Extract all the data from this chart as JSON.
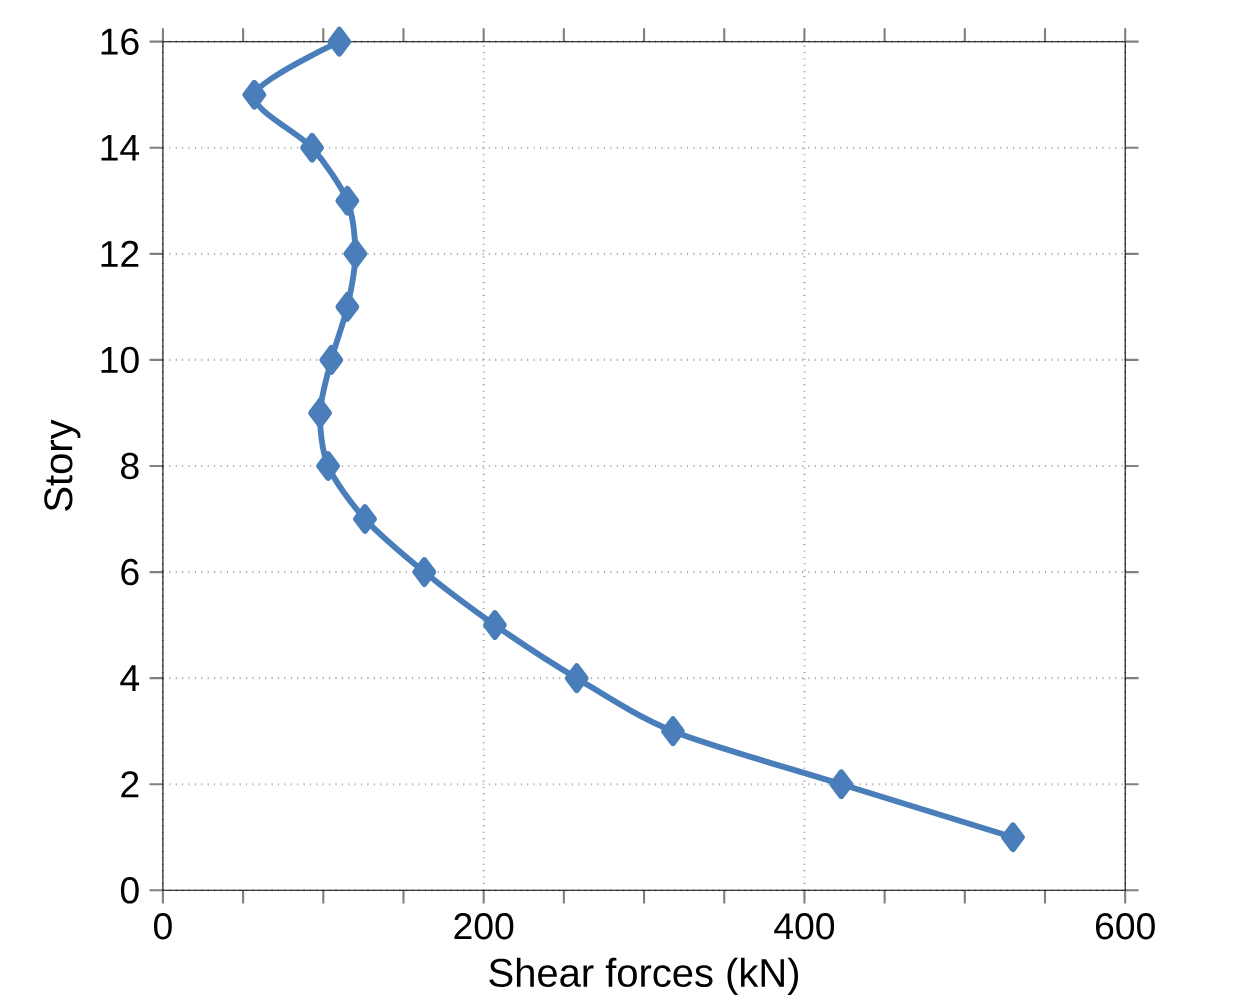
{
  "chart_data": {
    "type": "line",
    "xlabel": "Shear forces (kN)",
    "ylabel": "Story",
    "x": [
      530,
      423,
      318,
      258,
      207,
      163,
      126,
      103,
      98,
      105,
      115,
      120,
      115,
      93,
      57,
      110
    ],
    "values": [
      1,
      2,
      3,
      4,
      5,
      6,
      7,
      8,
      9,
      10,
      11,
      12,
      13,
      14,
      15,
      16
    ],
    "color": "#4a7ebb",
    "marker": "diamond",
    "line_style": "solid",
    "grid": true,
    "xlim": [
      0,
      600
    ],
    "xticks": [
      0,
      200,
      400,
      600
    ],
    "ylim": [
      0,
      16
    ],
    "yticks": [
      0,
      2,
      4,
      6,
      8,
      10,
      12,
      14,
      16
    ]
  }
}
